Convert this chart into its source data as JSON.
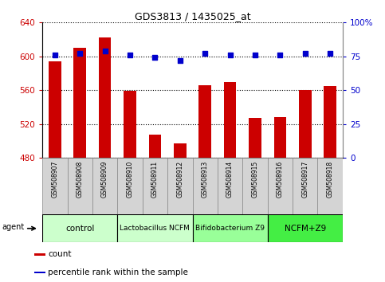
{
  "title": "GDS3813 / 1435025_at",
  "samples": [
    "GSM508907",
    "GSM508908",
    "GSM508909",
    "GSM508910",
    "GSM508911",
    "GSM508912",
    "GSM508913",
    "GSM508914",
    "GSM508915",
    "GSM508916",
    "GSM508917",
    "GSM508918"
  ],
  "counts": [
    594,
    610,
    622,
    559,
    508,
    497,
    566,
    570,
    527,
    528,
    560,
    565
  ],
  "percentile_ranks": [
    76,
    77,
    79,
    76,
    74,
    72,
    77,
    76,
    76,
    76,
    77,
    77
  ],
  "ylim_left": [
    480,
    640
  ],
  "ylim_right": [
    0,
    100
  ],
  "left_ticks": [
    480,
    520,
    560,
    600,
    640
  ],
  "right_ticks": [
    0,
    25,
    50,
    75,
    100
  ],
  "bar_color": "#cc0000",
  "dot_color": "#0000cc",
  "bar_bottom": 480,
  "group_boundaries": [
    {
      "start": 0,
      "end": 3,
      "label": "control",
      "color": "#ccffcc"
    },
    {
      "start": 3,
      "end": 6,
      "label": "Lactobacillus NCFM",
      "color": "#ccffcc"
    },
    {
      "start": 6,
      "end": 9,
      "label": "Bifidobacterium Z9",
      "color": "#99ff99"
    },
    {
      "start": 9,
      "end": 12,
      "label": "NCFM+Z9",
      "color": "#44ee44"
    }
  ],
  "legend_items": [
    {
      "label": "count",
      "color": "#cc0000"
    },
    {
      "label": "percentile rank within the sample",
      "color": "#0000cc"
    }
  ],
  "agent_label": "agent",
  "bar_color_label": "#cc0000",
  "dot_color_label": "#0000cc",
  "sample_bg_color": "#d4d4d4",
  "sample_border_color": "#888888",
  "group_border_color": "#000000"
}
